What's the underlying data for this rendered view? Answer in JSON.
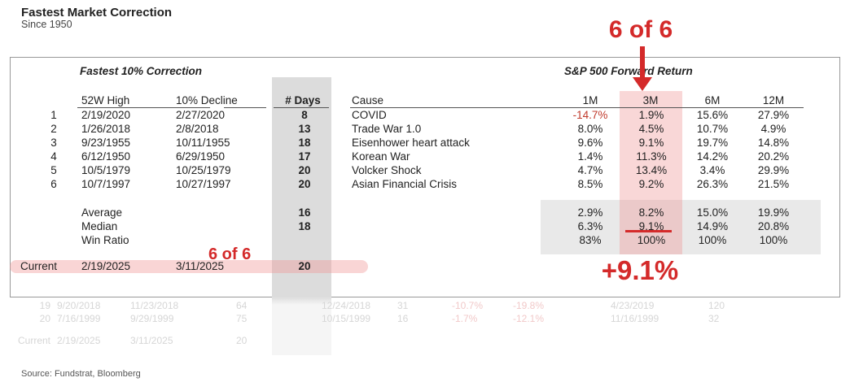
{
  "title": "Fastest Market Correction",
  "subtitle": "Since 1950",
  "left_heading": "Fastest 10% Correction",
  "right_heading": "S&P 500 Forward Return",
  "headers": {
    "high": "52W High",
    "decline": "10% Decline",
    "days": "# Days",
    "cause": "Cause",
    "m1": "1M",
    "m3": "3M",
    "m6": "6M",
    "m12": "12M"
  },
  "rows": [
    {
      "rank": "1",
      "high": "2/19/2020",
      "decline": "2/27/2020",
      "days": "8",
      "cause": "COVID",
      "m1": "-14.7%",
      "m3": "1.9%",
      "m6": "15.6%",
      "m12": "27.9%"
    },
    {
      "rank": "2",
      "high": "1/26/2018",
      "decline": "2/8/2018",
      "days": "13",
      "cause": "Trade War 1.0",
      "m1": "8.0%",
      "m3": "4.5%",
      "m6": "10.7%",
      "m12": "4.9%"
    },
    {
      "rank": "3",
      "high": "9/23/1955",
      "decline": "10/11/1955",
      "days": "18",
      "cause": "Eisenhower heart attack",
      "m1": "9.6%",
      "m3": "9.1%",
      "m6": "19.7%",
      "m12": "14.8%"
    },
    {
      "rank": "4",
      "high": "6/12/1950",
      "decline": "6/29/1950",
      "days": "17",
      "cause": "Korean War",
      "m1": "1.4%",
      "m3": "11.3%",
      "m6": "14.2%",
      "m12": "20.2%"
    },
    {
      "rank": "5",
      "high": "10/5/1979",
      "decline": "10/25/1979",
      "days": "20",
      "cause": "Volcker Shock",
      "m1": "4.7%",
      "m3": "13.4%",
      "m6": "3.4%",
      "m12": "29.9%"
    },
    {
      "rank": "6",
      "high": "10/7/1997",
      "decline": "10/27/1997",
      "days": "20",
      "cause": "Asian Financial Crisis",
      "m1": "8.5%",
      "m3": "9.2%",
      "m6": "26.3%",
      "m12": "21.5%"
    }
  ],
  "stats": [
    {
      "label": "Average",
      "days": "16",
      "m1": "2.9%",
      "m3": "8.2%",
      "m6": "15.0%",
      "m12": "19.9%"
    },
    {
      "label": "Median",
      "days": "18",
      "m1": "6.3%",
      "m3": "9.1%",
      "m6": "14.9%",
      "m12": "20.8%"
    },
    {
      "label": "Win Ratio",
      "days": "",
      "m1": "83%",
      "m3": "100%",
      "m6": "100%",
      "m12": "100%"
    }
  ],
  "current": {
    "label": "Current",
    "high": "2/19/2025",
    "decline": "3/11/2025",
    "days": "20"
  },
  "annotations": {
    "top": "6 of 6",
    "left": "6 of 6",
    "result": "+9.1%"
  },
  "faded_rows": [
    [
      "19",
      "9/20/2018",
      "11/23/2018",
      "64",
      "12/24/2018",
      "31",
      "-10.7%",
      "-19.8%",
      "4/23/2019",
      "120"
    ],
    [
      "20",
      "7/16/1999",
      "9/29/1999",
      "75",
      "10/15/1999",
      "16",
      "-1.7%",
      "-12.1%",
      "11/16/1999",
      "32"
    ],
    [
      "Current",
      "2/19/2025",
      "3/11/2025",
      "20",
      "",
      "",
      "",
      "",
      "",
      ""
    ]
  ],
  "source": "Source: Fundstrat, Bloomberg",
  "colors": {
    "accent": "#d42a2a",
    "negative": "#c0392b",
    "highlight": "#f6c9c9",
    "band": "#e3e3e3"
  }
}
